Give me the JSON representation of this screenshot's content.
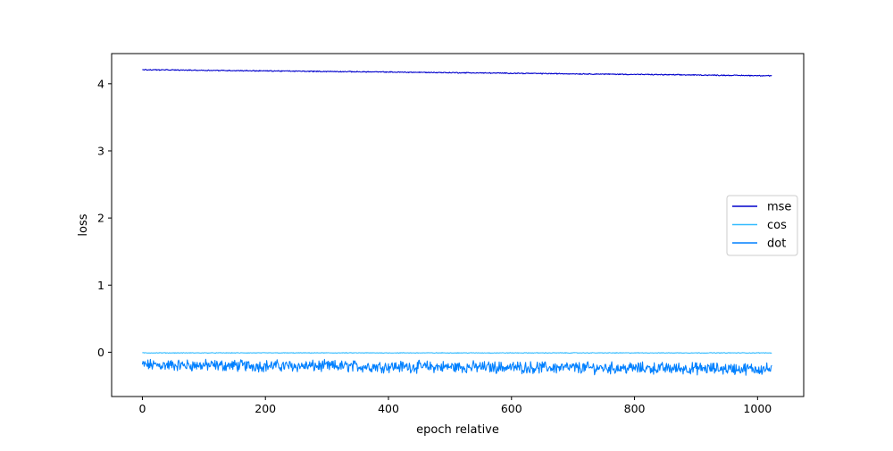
{
  "chart_data": {
    "type": "line",
    "title": "",
    "xlabel": "epoch relative",
    "ylabel": "loss",
    "xlim": [
      -50,
      1075
    ],
    "ylim": [
      -0.66,
      4.45
    ],
    "xticks": [
      0,
      200,
      400,
      600,
      800,
      1000
    ],
    "yticks": [
      0,
      1,
      2,
      3,
      4
    ],
    "grid": false,
    "legend_position": "center-right",
    "series": [
      {
        "name": "mse",
        "color": "#0000cc",
        "x_range": [
          0,
          1023
        ],
        "start": 4.21,
        "end": 4.12,
        "noise": 0.006
      },
      {
        "name": "cos",
        "color": "#33bbff",
        "x_range": [
          0,
          1023
        ],
        "start": -0.01,
        "end": -0.01,
        "noise": 0.004
      },
      {
        "name": "dot",
        "color": "#0080ff",
        "x_range": [
          0,
          1023
        ],
        "start": -0.19,
        "end": -0.25,
        "noise": 0.07
      }
    ]
  }
}
